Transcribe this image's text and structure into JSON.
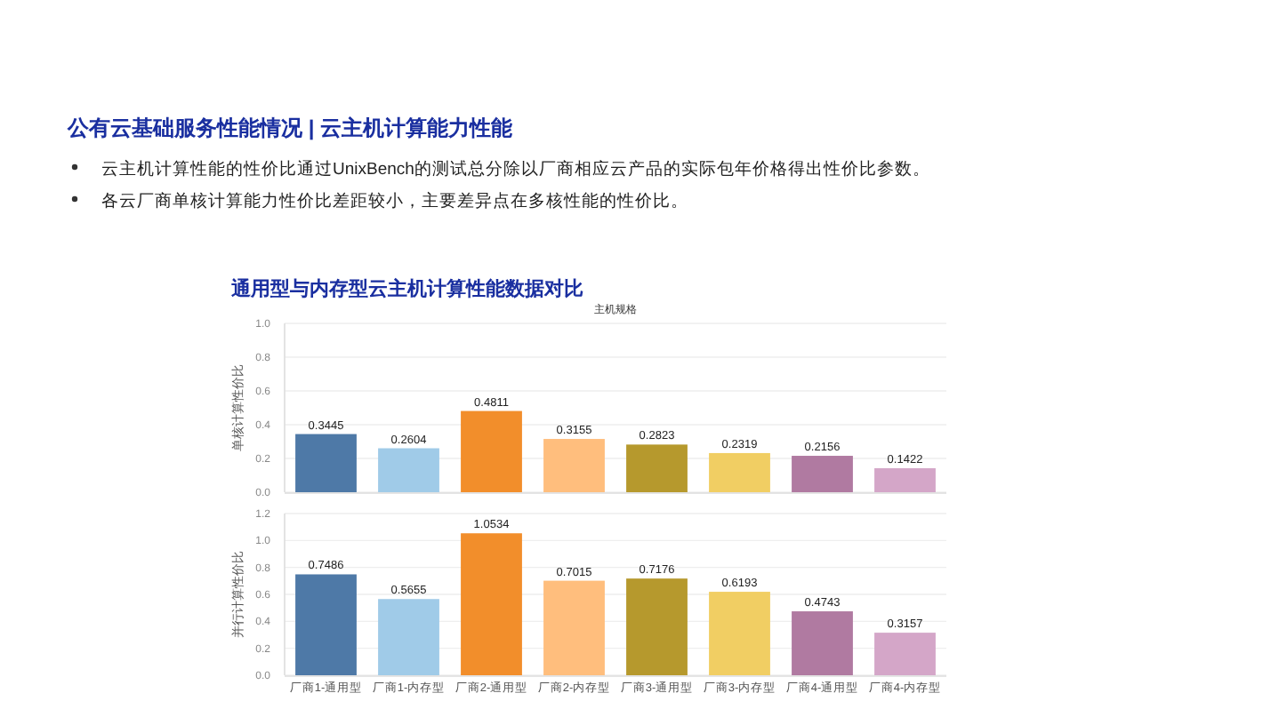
{
  "chart_data": [
    {
      "type": "bar",
      "title": "通用型与内存型云主机计算性能数据对比",
      "xlabel": "主机规格",
      "ylabel": "单核计算性价比",
      "annotations": [
        "公有云基础服务性能情况 | 云主机计算能力性能",
        "云主机计算性能的性价比通过UnixBench的测试总分除以厂商相应云产品的实际包年价格得出性价比参数。",
        "各云厂商单核计算能力性价比差距较小，主要差异点在多核性能的性价比。"
      ],
      "categories": [
        null,
        null,
        null,
        null,
        null,
        null,
        null,
        null
      ],
      "values": [
        0.3445,
        0.2604,
        0.4811,
        0.3155,
        0.2823,
        0.2319,
        0.2156,
        0.1422
      ],
      "colors": [
        "#4e79a7",
        "#a0cbe8",
        "#f28e2b",
        "#ffbe7d",
        "#b6992d",
        "#f1ce63",
        "#b07aa1",
        "#d4a6c8"
      ],
      "ylim": [
        0,
        1
      ],
      "yticks": [
        {
          "value": 0,
          "label": "0.0"
        },
        {
          "value": 0.2,
          "label": "0.2"
        },
        {
          "value": 0.4,
          "label": "0.4"
        },
        {
          "value": 0.6,
          "label": "0.6"
        },
        {
          "value": 0.8,
          "label": "0.8"
        },
        {
          "value": 1,
          "label": "1.0"
        }
      ],
      "grid": "y",
      "data_labels": true,
      "tick_labels": "y"
    },
    {
      "type": "bar",
      "ylabel": "并行计算性价比",
      "categories": [
        "厂商1-通用型",
        "厂商1-内存型",
        "厂商2-通用型",
        "厂商2-内存型",
        "厂商3-通用型",
        "厂商3-内存型",
        "厂商4-通用型",
        "厂商4-内存型"
      ],
      "values": [
        0.7486,
        0.5655,
        1.0534,
        0.7015,
        0.7176,
        0.6193,
        0.4743,
        0.3157
      ],
      "colors": [
        "#4e79a7",
        "#a0cbe8",
        "#f28e2b",
        "#ffbe7d",
        "#b6992d",
        "#f1ce63",
        "#b07aa1",
        "#d4a6c8"
      ],
      "ylim": [
        0,
        1.2
      ],
      "yticks": [
        {
          "value": 0,
          "label": "0.0"
        },
        {
          "value": 0.2,
          "label": "0.2"
        },
        {
          "value": 0.4,
          "label": "0.4"
        },
        {
          "value": 0.6,
          "label": "0.6"
        },
        {
          "value": 0.8,
          "label": "0.8"
        },
        {
          "value": 1,
          "label": "1.0"
        },
        {
          "value": 1.2,
          "label": "1.2"
        }
      ],
      "grid": "y",
      "data_labels": true
    }
  ]
}
